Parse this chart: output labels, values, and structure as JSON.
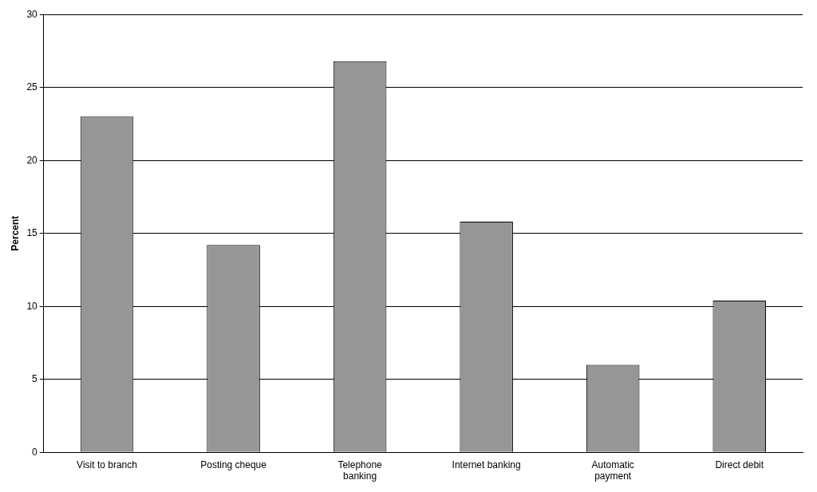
{
  "chart_data": {
    "type": "bar",
    "ylabel": "Percent",
    "categories": [
      "Visit to branch",
      "Posting cheque",
      "Telephone banking",
      "Internet banking",
      "Automatic payment",
      "Direct debit"
    ],
    "values": [
      23.0,
      14.2,
      26.8,
      15.8,
      6.0,
      10.4
    ],
    "color": "#969696",
    "ylim": [
      0,
      30
    ],
    "yticks": [
      0,
      5,
      10,
      15,
      20,
      25,
      30
    ],
    "grid": "y",
    "legend": false
  }
}
